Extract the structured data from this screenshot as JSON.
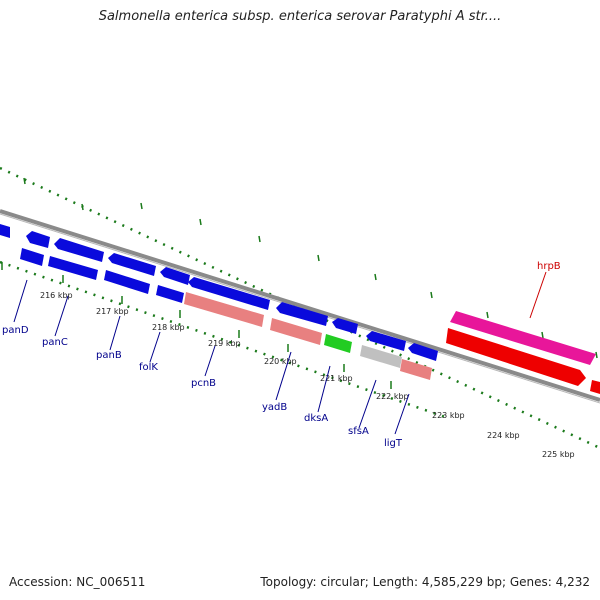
{
  "title": "Salmonella enterica subsp. enterica serovar Paratyphi A str....",
  "footer": {
    "accession": "Accession: NC_006511",
    "summary": "Topology: circular; Length: 4,585,229 bp; Genes: 4,232"
  },
  "colors": {
    "backbone": "#888888",
    "tick": "#1b7a1b",
    "blue_gene": "#0a0adc",
    "salmon_gene": "#e88080",
    "green_gene": "#22cc22",
    "gray_gene": "#c0c0c0",
    "magenta_gene": "#e8169a",
    "red_gene": "#ee0000",
    "label_blue": "#00008b",
    "label_red": "#cc0000"
  },
  "scale_labels": [
    "216 kbp",
    "217 kbp",
    "218 kbp",
    "219 kbp",
    "220 kbp",
    "221 kbp",
    "222 kbp",
    "223 kbp",
    "224 kbp",
    "225 kbp"
  ],
  "gene_labels": [
    {
      "name": "panD",
      "color": "blue"
    },
    {
      "name": "panC",
      "color": "blue"
    },
    {
      "name": "panB",
      "color": "blue"
    },
    {
      "name": "folK",
      "color": "blue"
    },
    {
      "name": "pcnB",
      "color": "blue"
    },
    {
      "name": "yadB",
      "color": "blue"
    },
    {
      "name": "dksA",
      "color": "blue"
    },
    {
      "name": "sfsA",
      "color": "blue"
    },
    {
      "name": "ligT",
      "color": "blue"
    },
    {
      "name": "hrpB",
      "color": "red"
    }
  ]
}
